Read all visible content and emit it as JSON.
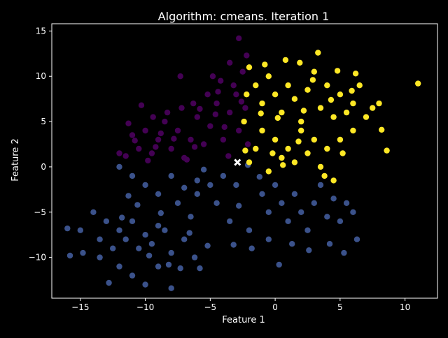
{
  "chart_data": {
    "type": "scatter",
    "title": "Algorithm: cmeans. Iteration 1",
    "xlabel": "Feature 1",
    "ylabel": "Feature 2",
    "xlim": [
      -17.2,
      12.5
    ],
    "ylim": [
      -14.5,
      15.8
    ],
    "xticks": [
      -15,
      -10,
      -5,
      0,
      5,
      10
    ],
    "yticks": [
      -10,
      -5,
      0,
      5,
      10,
      15
    ],
    "tick_labels_x": [
      "−15",
      "−10",
      "−5",
      "0",
      "5",
      "10"
    ],
    "tick_labels_y": [
      "−10",
      "−5",
      "0",
      "5",
      "10",
      "15"
    ],
    "grid": false,
    "colors": {
      "background": "#000000",
      "purple": "#440154",
      "blue": "#3b528b",
      "yellow": "#fde725",
      "centroid": "#ffffff"
    },
    "series": [
      {
        "color": "purple",
        "points": [
          [
            -11.5,
            1.2
          ],
          [
            -11,
            3.5
          ],
          [
            -10.5,
            2
          ],
          [
            -10,
            4
          ],
          [
            -9.5,
            1.5
          ],
          [
            -9,
            3
          ],
          [
            -8.5,
            5
          ],
          [
            -8,
            2
          ],
          [
            -7.5,
            4
          ],
          [
            -7,
            1
          ],
          [
            -6.5,
            3
          ],
          [
            -6,
            5.5
          ],
          [
            -5.5,
            2.5
          ],
          [
            -5,
            4.5
          ],
          [
            -4.5,
            7
          ],
          [
            -4,
            3
          ],
          [
            -3.5,
            6
          ],
          [
            -3,
            8
          ],
          [
            -2.8,
            4
          ],
          [
            -2.5,
            10.5
          ],
          [
            -3.2,
            9
          ],
          [
            -4.2,
            9.5
          ],
          [
            -5.2,
            8
          ],
          [
            -6.3,
            7
          ],
          [
            -7.2,
            6.5
          ],
          [
            -8.3,
            6
          ],
          [
            -9.4,
            5.5
          ],
          [
            -10.3,
            6.8
          ],
          [
            -11.3,
            4.8
          ],
          [
            -12,
            1.5
          ],
          [
            -2.8,
            14.2
          ],
          [
            -3.5,
            11.5
          ],
          [
            -4.8,
            10
          ],
          [
            -7.3,
            10
          ],
          [
            -2.2,
            12.3
          ],
          [
            -2.3,
            6.5
          ],
          [
            -2.1,
            2.5
          ],
          [
            -3.6,
            1.2
          ],
          [
            -6.8,
            0.8
          ],
          [
            -9.8,
            0.7
          ],
          [
            -8.8,
            3.7
          ],
          [
            -6.2,
            2.2
          ],
          [
            -4.6,
            5.8
          ],
          [
            -5.8,
            6.4
          ],
          [
            -7.8,
            3.1
          ],
          [
            -10.8,
            2.9
          ],
          [
            -9.2,
            2.2
          ],
          [
            -3.9,
            4.4
          ],
          [
            -2.6,
            7.2
          ],
          [
            -4.4,
            8.3
          ]
        ]
      },
      {
        "color": "blue",
        "points": [
          [
            -12,
            -7
          ],
          [
            -11.5,
            -8
          ],
          [
            -11,
            -6
          ],
          [
            -10.5,
            -9
          ],
          [
            -10,
            -7.5
          ],
          [
            -9.5,
            -8.5
          ],
          [
            -9,
            -6.5
          ],
          [
            -8.5,
            -7
          ],
          [
            -8,
            -9.5
          ],
          [
            -12.5,
            -9
          ],
          [
            -13,
            -6
          ],
          [
            -13.5,
            -8
          ],
          [
            -14,
            -5
          ],
          [
            -15,
            -7
          ],
          [
            -16,
            -6.8
          ],
          [
            -12,
            -11
          ],
          [
            -11,
            -12
          ],
          [
            -10,
            -13
          ],
          [
            -8,
            -13.4
          ],
          [
            -9,
            -11
          ],
          [
            -7,
            -8
          ],
          [
            -6.5,
            -5.5
          ],
          [
            -7.5,
            -4
          ],
          [
            -6,
            -3
          ],
          [
            -9,
            -3
          ],
          [
            -10,
            -2
          ],
          [
            -11,
            -1
          ],
          [
            -12,
            0
          ],
          [
            -8,
            -1
          ],
          [
            -6,
            -1.5
          ],
          [
            -5,
            -2
          ],
          [
            -4,
            -1
          ],
          [
            -3,
            -2
          ],
          [
            -4.5,
            -4
          ],
          [
            -3.5,
            -6
          ],
          [
            -2,
            -7
          ],
          [
            -1,
            -3
          ],
          [
            -0.5,
            -5
          ],
          [
            0.5,
            -4
          ],
          [
            1,
            -6
          ],
          [
            1.5,
            -3
          ],
          [
            2,
            -5
          ],
          [
            2.5,
            -7
          ],
          [
            3,
            -4
          ],
          [
            3.5,
            -2
          ],
          [
            4,
            -5.5
          ],
          [
            4.5,
            -3.5
          ],
          [
            5,
            -6
          ],
          [
            5.5,
            -4
          ],
          [
            6,
            -5
          ],
          [
            0,
            -2
          ],
          [
            -0.5,
            -8
          ],
          [
            1.3,
            -8.5
          ],
          [
            2.6,
            -9.2
          ],
          [
            4.2,
            -8.5
          ],
          [
            5.3,
            -9.5
          ],
          [
            6.3,
            -8
          ],
          [
            -1.8,
            -9
          ],
          [
            -3.2,
            -8.6
          ],
          [
            -5.2,
            -8.7
          ],
          [
            -5.8,
            -11.2
          ],
          [
            -11.3,
            -3.2
          ],
          [
            -13.5,
            -10
          ],
          [
            -14.8,
            -9.5
          ],
          [
            -15.8,
            -9.8
          ],
          [
            -12.8,
            -12.8
          ],
          [
            -7.3,
            -11.2
          ],
          [
            -6.2,
            -10
          ],
          [
            -2.1,
            0.2
          ],
          [
            0.3,
            -10.8
          ],
          [
            -7,
            -2.3
          ],
          [
            -8.8,
            -5.1
          ],
          [
            -10.6,
            -4.2
          ],
          [
            -11.8,
            -5.6
          ],
          [
            -9.7,
            -9.8
          ],
          [
            -8.2,
            -10.8
          ],
          [
            -6.6,
            -7.3
          ],
          [
            -5.5,
            -0.3
          ],
          [
            -2.8,
            -4.3
          ],
          [
            -1.2,
            -1.1
          ]
        ]
      },
      {
        "color": "yellow",
        "points": [
          [
            -2,
            11
          ],
          [
            -1.5,
            9
          ],
          [
            -1,
            7
          ],
          [
            -0.5,
            10
          ],
          [
            0,
            8
          ],
          [
            0.5,
            6
          ],
          [
            1,
            9
          ],
          [
            1.5,
            7.5
          ],
          [
            2,
            5
          ],
          [
            2.5,
            8.5
          ],
          [
            3,
            10.5
          ],
          [
            3.5,
            6.5
          ],
          [
            4,
            9
          ],
          [
            4.5,
            5.5
          ],
          [
            5,
            8
          ],
          [
            5.5,
            6
          ],
          [
            6,
            7
          ],
          [
            6.5,
            9
          ],
          [
            7,
            5.5
          ],
          [
            7.5,
            6.5
          ],
          [
            8,
            7
          ],
          [
            -1,
            4
          ],
          [
            0,
            3
          ],
          [
            1,
            2
          ],
          [
            2,
            4
          ],
          [
            3,
            3
          ],
          [
            -1.5,
            2
          ],
          [
            -2,
            0.5
          ],
          [
            -0.5,
            -0.5
          ],
          [
            0.5,
            1
          ],
          [
            1.5,
            0.5
          ],
          [
            2.5,
            1.5
          ],
          [
            3.5,
            0
          ],
          [
            4,
            2
          ],
          [
            5,
            3
          ],
          [
            6,
            4
          ],
          [
            3.8,
            -1
          ],
          [
            4.5,
            -1.5
          ],
          [
            -2.4,
            5
          ],
          [
            -2.2,
            8
          ],
          [
            -2.3,
            1.8
          ],
          [
            1.9,
            11.5
          ],
          [
            3.3,
            12.6
          ],
          [
            0.8,
            11.8
          ],
          [
            4.8,
            10.6
          ],
          [
            6.2,
            10.3
          ],
          [
            8.2,
            4.1
          ],
          [
            8.6,
            1.8
          ],
          [
            11,
            9.2
          ],
          [
            5.2,
            1.5
          ],
          [
            1.8,
            2.8
          ],
          [
            0.6,
            0.2
          ],
          [
            -0.2,
            1.5
          ],
          [
            2.2,
            6.2
          ],
          [
            0.2,
            5.4
          ],
          [
            -1.1,
            5.9
          ],
          [
            4.3,
            7.4
          ],
          [
            5.9,
            8.4
          ],
          [
            2.9,
            9.6
          ],
          [
            -0.8,
            11.3
          ]
        ]
      }
    ],
    "centroid": {
      "marker": "x",
      "point": [
        -2.9,
        0.5
      ]
    }
  }
}
